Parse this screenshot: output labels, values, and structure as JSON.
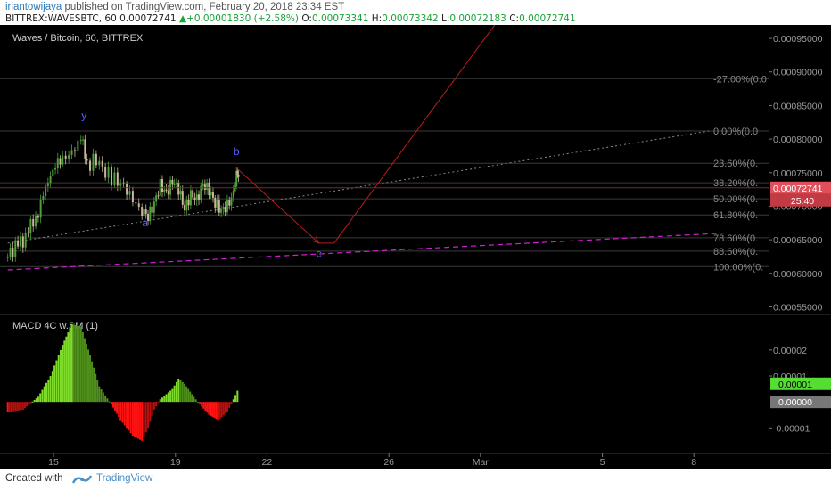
{
  "header": {
    "author": "iriantowijaya",
    "published_text": " published on TradingView.com, February 20, 2018 23:34 EST",
    "symbol": "BITTREX:WAVESBTC, 60",
    "price": "0.00072741",
    "change_arrow": "▲",
    "change": "+0.00001830 (+2.58%)",
    "o_label": "O:",
    "o": "0.00073341",
    "h_label": "H:",
    "h": "0.00073342",
    "l_label": "L:",
    "l": "0.00072183",
    "c_label": "C:",
    "c": "0.00072741"
  },
  "footer": {
    "created_with": "Created with",
    "brand": "TradingView"
  },
  "chart_data": [
    {
      "type": "candlestick",
      "title": "Waves / Bitcoin, 60, BITTREX",
      "ylim": [
        0.00054,
        0.00097
      ],
      "y_ticks": [
        "0.00095000",
        "0.00090000",
        "0.00085000",
        "0.00080000",
        "0.00075000",
        "0.00070000",
        "0.00065000",
        "0.00060000",
        "0.00055000"
      ],
      "y_tick_values": [
        0.00095,
        0.0009,
        0.00085,
        0.0008,
        0.00075,
        0.0007,
        0.00065,
        0.0006,
        0.00055
      ],
      "x_ticks": [
        "15",
        "19",
        "22",
        "26",
        "Mar",
        "5",
        "8"
      ],
      "x_tick_days": [
        15,
        19,
        22,
        26,
        29,
        33,
        36
      ],
      "last_price_label": "0.00072741",
      "last_price": 0.00072741,
      "countdown": "25:40",
      "price_series": [
        [
          13.5,
          0.00063
        ],
        [
          14.0,
          0.00065
        ],
        [
          14.5,
          0.00069
        ],
        [
          14.9,
          0.00075
        ],
        [
          15.3,
          0.00077
        ],
        [
          15.6,
          0.00078
        ],
        [
          15.9,
          0.0008
        ],
        [
          16.1,
          0.00076
        ],
        [
          16.4,
          0.00077
        ],
        [
          16.7,
          0.00075
        ],
        [
          17.0,
          0.00074
        ],
        [
          17.3,
          0.00073
        ],
        [
          17.6,
          0.00071
        ],
        [
          17.9,
          0.00069
        ],
        [
          18.1,
          0.00068
        ],
        [
          18.3,
          0.0007
        ],
        [
          18.5,
          0.00073
        ],
        [
          18.7,
          0.00072
        ],
        [
          18.9,
          0.00074
        ],
        [
          19.1,
          0.00073
        ],
        [
          19.3,
          0.0007
        ],
        [
          19.5,
          0.00072
        ],
        [
          19.7,
          0.00071
        ],
        [
          19.9,
          0.00073
        ],
        [
          20.1,
          0.00072
        ],
        [
          20.3,
          0.0007
        ],
        [
          20.5,
          0.00069
        ],
        [
          20.7,
          0.0007
        ],
        [
          20.9,
          0.00072
        ],
        [
          21.0,
          0.00075
        ],
        [
          21.1,
          0.000727
        ]
      ],
      "fib_levels": [
        {
          "label": "-27.00%(0.0",
          "value": 0.00089
        },
        {
          "label": "0.00%(0.0",
          "value": 0.000812
        },
        {
          "label": "23.60%(0.",
          "value": 0.000764
        },
        {
          "label": "38.20%(0.",
          "value": 0.000735
        },
        {
          "label": "50.00%(0.",
          "value": 0.000711
        },
        {
          "label": "61.80%(0.",
          "value": 0.000687
        },
        {
          "label": "78.60%(0.",
          "value": 0.000653
        },
        {
          "label": "88.60%(0.",
          "value": 0.000633
        },
        {
          "label": "100.00%(0.",
          "value": 0.00061
        }
      ],
      "wave_labels": [
        {
          "text": "y",
          "day": 16.0,
          "value": 0.00083
        },
        {
          "text": "b",
          "day": 21.0,
          "value": 0.000776
        },
        {
          "text": "a",
          "day": 18.0,
          "value": 0.00067
        },
        {
          "text": "c",
          "day": 23.7,
          "value": 0.000624
        }
      ],
      "projection": [
        [
          21.0,
          0.000757
        ],
        [
          23.7,
          0.000645
        ],
        [
          24.2,
          0.000645
        ],
        [
          29.5,
          0.000972
        ]
      ],
      "trendline": [
        [
          13.5,
          0.000645
        ],
        [
          36.5,
          0.000812
        ]
      ],
      "channel_line": [
        [
          13.5,
          0.000605
        ],
        [
          37.0,
          0.00066
        ]
      ],
      "line_colors": {
        "projection": "#b81d1d",
        "trendline": "#8a8a8a",
        "channel": "#d21ed2",
        "wave_label": "#5a5aff",
        "last_price": "#e0505a"
      }
    },
    {
      "type": "bar",
      "title": "MACD 4C w.SM (1)",
      "ylim": [
        -1.95e-05,
        3.3e-05
      ],
      "y_ticks": [
        "0.00002",
        "0.00001",
        "-0.00001"
      ],
      "y_tick_values": [
        2e-05,
        1e-05,
        -1e-05
      ],
      "value_labels": [
        {
          "text": "0.00001",
          "value": 7e-06,
          "bg": "#55dd33",
          "color": "#000"
        },
        {
          "text": "0.00000",
          "value": 0.0,
          "bg": "#777777",
          "color": "#fff"
        }
      ],
      "histogram_series": [
        [
          13.5,
          -4e-06
        ],
        [
          14.0,
          -3e-06
        ],
        [
          14.5,
          2e-06
        ],
        [
          14.9,
          1e-05
        ],
        [
          15.3,
          2.2e-05
        ],
        [
          15.6,
          3e-05
        ],
        [
          15.9,
          2.9e-05
        ],
        [
          16.2,
          1.8e-05
        ],
        [
          16.5,
          6e-06
        ],
        [
          16.9,
          -1e-06
        ],
        [
          17.2,
          -7e-06
        ],
        [
          17.6,
          -1.3e-05
        ],
        [
          17.9,
          -1.5e-05
        ],
        [
          18.1,
          -1e-05
        ],
        [
          18.3,
          -3e-06
        ],
        [
          18.5,
          1e-06
        ],
        [
          18.9,
          5e-06
        ],
        [
          19.1,
          9e-06
        ],
        [
          19.3,
          7e-06
        ],
        [
          19.6,
          2e-06
        ],
        [
          19.8,
          -1e-06
        ],
        [
          20.1,
          -5e-06
        ],
        [
          20.4,
          -7e-06
        ],
        [
          20.7,
          -4e-06
        ],
        [
          20.9,
          1e-06
        ],
        [
          21.1,
          6e-06
        ]
      ],
      "colors": {
        "up_strong": "#7fdc2a",
        "up_weak": "#4f8f1c",
        "down_strong": "#ff1414",
        "down_weak": "#b80f0f"
      }
    }
  ]
}
